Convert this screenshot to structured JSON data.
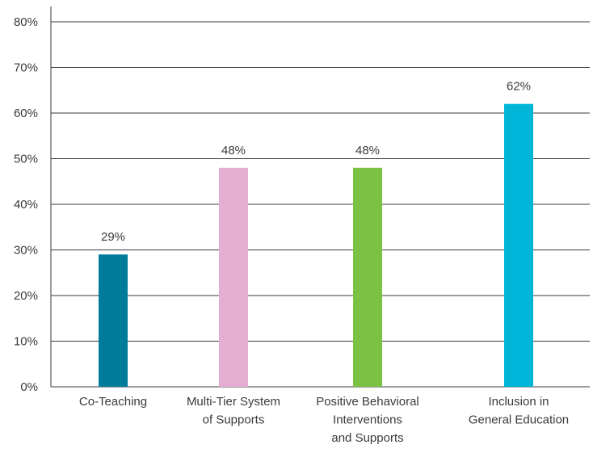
{
  "chart_data": {
    "type": "bar",
    "categories": [
      [
        "Co-Teaching"
      ],
      [
        "Multi-Tier System",
        "of Supports"
      ],
      [
        "Positive Behavioral",
        "Interventions",
        "and Supports"
      ],
      [
        "Inclusion in",
        "General Education"
      ]
    ],
    "values": [
      29,
      48,
      48,
      62
    ],
    "data_labels": [
      "29%",
      "48%",
      "48%",
      "62%"
    ],
    "colors": [
      "#007B9A",
      "#E3AECF",
      "#7BC143",
      "#00B5D8"
    ],
    "ylim": [
      0,
      80
    ],
    "y_ticks": [
      "0%",
      "10%",
      "20%",
      "30%",
      "40%",
      "50%",
      "60%",
      "70%",
      "80%"
    ],
    "grid": true,
    "axis_color": "#3a3a3a",
    "title": "",
    "xlabel": "",
    "ylabel": ""
  }
}
